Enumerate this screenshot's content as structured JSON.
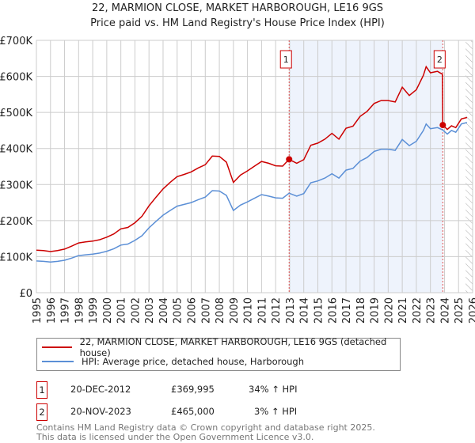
{
  "chart_data": {
    "type": "line",
    "title": "22, MARMION CLOSE, MARKET HARBOROUGH, LE16 9GS",
    "subtitle": "Price paid vs. HM Land Registry's House Price Index (HPI)",
    "ylim": [
      0,
      700000
    ],
    "xlim": [
      1995,
      2026
    ],
    "yticks": [
      {
        "v": 0,
        "label": "£0"
      },
      {
        "v": 100000,
        "label": "£100K"
      },
      {
        "v": 200000,
        "label": "£200K"
      },
      {
        "v": 300000,
        "label": "£300K"
      },
      {
        "v": 400000,
        "label": "£400K"
      },
      {
        "v": 500000,
        "label": "£500K"
      },
      {
        "v": 600000,
        "label": "£600K"
      },
      {
        "v": 700000,
        "label": "£700K"
      }
    ],
    "xticks": [
      "1995",
      "1996",
      "1997",
      "1998",
      "1999",
      "2000",
      "2001",
      "2002",
      "2003",
      "2004",
      "2005",
      "2006",
      "2007",
      "2008",
      "2009",
      "2010",
      "2011",
      "2012",
      "2013",
      "2014",
      "2015",
      "2016",
      "2017",
      "2018",
      "2019",
      "2020",
      "2021",
      "2022",
      "2023",
      "2024",
      "2025",
      "2026"
    ],
    "x": [
      1995,
      1995.5,
      1996,
      1996.5,
      1997,
      1997.5,
      1998,
      1998.5,
      1999,
      1999.5,
      2000,
      2000.5,
      2001,
      2001.5,
      2002,
      2002.5,
      2003,
      2003.5,
      2004,
      2004.5,
      2005,
      2005.5,
      2006,
      2006.5,
      2007,
      2007.5,
      2008,
      2008.5,
      2009,
      2009.5,
      2010,
      2010.5,
      2011,
      2011.5,
      2012,
      2012.5,
      2012.96,
      2013.5,
      2014,
      2014.5,
      2015,
      2015.5,
      2016,
      2016.5,
      2017,
      2017.5,
      2018,
      2018.5,
      2019,
      2019.5,
      2020,
      2020.5,
      2021,
      2021.5,
      2022,
      2022.5,
      2022.7,
      2023,
      2023.5,
      2023.85,
      2023.88,
      2024.2,
      2024.5,
      2024.8,
      2025.2,
      2025.6
    ],
    "series": [
      {
        "name": "22, MARMION CLOSE, MARKET HARBOROUGH, LE16 9GS (detached house)",
        "color": "#cc0000",
        "values": [
          118,
          117,
          114,
          117,
          121,
          129,
          138,
          141,
          143,
          147,
          154,
          163,
          177,
          181,
          194,
          212,
          241,
          265,
          288,
          306,
          322,
          328,
          335,
          346,
          355,
          379,
          378,
          362,
          306,
          326,
          338,
          351,
          364,
          359,
          352,
          351,
          370,
          359,
          369,
          409,
          415,
          426,
          442,
          426,
          456,
          462,
          489,
          503,
          525,
          533,
          533,
          529,
          570,
          547,
          563,
          603,
          627,
          610,
          614,
          606,
          465,
          453,
          463,
          458,
          482,
          486
        ]
      },
      {
        "name": "HPI: Average price, detached house, Harborough",
        "color": "#5b8fd6",
        "values": [
          88,
          87,
          85,
          87,
          90,
          96,
          103,
          105,
          107,
          110,
          115,
          122,
          132,
          135,
          145,
          158,
          180,
          198,
          215,
          228,
          240,
          245,
          250,
          258,
          265,
          283,
          282,
          270,
          228,
          243,
          252,
          262,
          272,
          268,
          263,
          262,
          276,
          268,
          275,
          305,
          310,
          318,
          330,
          318,
          340,
          345,
          365,
          375,
          392,
          398,
          398,
          395,
          425,
          408,
          420,
          450,
          468,
          455,
          458,
          452,
          451,
          440,
          450,
          445,
          468,
          472
        ]
      }
    ],
    "value_unit": "£K",
    "sales": [
      {
        "n": "1",
        "x": 2012.96,
        "date": "20-DEC-2012",
        "price": "£369,995",
        "value": 370,
        "hpi": "34% ↑ HPI"
      },
      {
        "n": "2",
        "x": 2023.88,
        "date": "20-NOV-2023",
        "price": "£465,000",
        "value": 465,
        "hpi": "3% ↑ HPI"
      }
    ],
    "shaded_range": [
      2012.96,
      2023.88
    ],
    "hatched_from": 2025.5,
    "grid": true
  },
  "footer": [
    "Contains HM Land Registry data © Crown copyright and database right 2025.",
    "This data is licensed under the Open Government Licence v3.0."
  ]
}
